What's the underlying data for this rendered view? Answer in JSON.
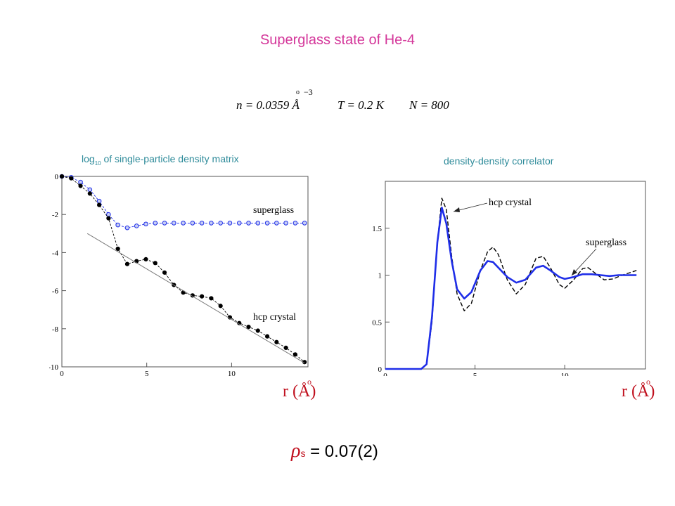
{
  "title": "Superglass  state of He-4",
  "params": {
    "n_text": "n = 0.0359 Å",
    "n_exp": "−3",
    "T_text": "T = 0.2 K",
    "N_text": "N = 800"
  },
  "rho_s": {
    "symbol": "ρ",
    "sub": "s",
    "value": "= 0.07(2)"
  },
  "colors": {
    "title": "#d4379a",
    "caption": "#2e8b9a",
    "superglass": "#1f2ee8",
    "crystal": "#000000",
    "axis_label": "#c0101e"
  },
  "chart_data": [
    {
      "type": "scatter",
      "caption_log": "log",
      "caption_sub": "10",
      "caption_rest": "of single-particle density matrix",
      "xlabel": "r (Å)",
      "xlim": [
        0,
        14.5
      ],
      "ylim": [
        -10,
        0
      ],
      "xticks": [
        0,
        5,
        10
      ],
      "yticks": [
        0,
        -2,
        -4,
        -6,
        -8,
        -10
      ],
      "series": [
        {
          "name": "superglass",
          "marker": "open-circle",
          "x": [
            0,
            0.55,
            1.1,
            1.65,
            2.2,
            2.75,
            3.3,
            3.85,
            4.4,
            4.95,
            5.5,
            6.05,
            6.6,
            7.15,
            7.7,
            8.25,
            8.8,
            9.35,
            9.9,
            10.45,
            11.0,
            11.55,
            12.1,
            12.65,
            13.2,
            13.75,
            14.3
          ],
          "y": [
            0,
            -0.05,
            -0.3,
            -0.7,
            -1.3,
            -2.0,
            -2.55,
            -2.7,
            -2.6,
            -2.5,
            -2.45,
            -2.45,
            -2.45,
            -2.45,
            -2.45,
            -2.45,
            -2.45,
            -2.45,
            -2.45,
            -2.45,
            -2.45,
            -2.45,
            -2.45,
            -2.45,
            -2.45,
            -2.45,
            -2.45
          ]
        },
        {
          "name": "hcp crystal",
          "marker": "filled-circle",
          "x": [
            0,
            0.55,
            1.1,
            1.65,
            2.2,
            2.75,
            3.3,
            3.85,
            4.4,
            4.95,
            5.5,
            6.05,
            6.6,
            7.15,
            7.7,
            8.25,
            8.8,
            9.35,
            9.9,
            10.45,
            11.0,
            11.55,
            12.1,
            12.65,
            13.2,
            13.75,
            14.3
          ],
          "y": [
            0,
            -0.1,
            -0.5,
            -0.9,
            -1.5,
            -2.2,
            -3.8,
            -4.6,
            -4.45,
            -4.35,
            -4.55,
            -5.05,
            -5.7,
            -6.1,
            -6.25,
            -6.3,
            -6.4,
            -6.8,
            -7.4,
            -7.7,
            -7.9,
            -8.1,
            -8.4,
            -8.7,
            -9.0,
            -9.35,
            -9.75
          ]
        },
        {
          "name": "hcp crystal",
          "marker": "line",
          "x": [
            1.5,
            14.3
          ],
          "y": [
            -3.0,
            -9.8
          ]
        }
      ]
    },
    {
      "type": "line",
      "caption": "density-density correlator",
      "xlabel": "r (Å)",
      "xlim": [
        0,
        14.5
      ],
      "ylim": [
        0,
        2.0
      ],
      "xticks": [
        0,
        5,
        10
      ],
      "yticks": [
        0,
        0.5,
        1,
        1.5
      ],
      "series": [
        {
          "name": "hcp crystal",
          "style": "dashed",
          "x": [
            0,
            2.0,
            2.3,
            2.6,
            2.9,
            3.15,
            3.4,
            3.7,
            4.0,
            4.4,
            4.8,
            5.3,
            5.7,
            6.0,
            6.3,
            6.8,
            7.3,
            7.8,
            8.4,
            8.8,
            9.2,
            9.7,
            10.0,
            10.5,
            11.0,
            11.3,
            11.7,
            12.2,
            12.7,
            13.2,
            13.7,
            14.0
          ],
          "y": [
            0,
            0,
            0.05,
            0.5,
            1.35,
            1.82,
            1.7,
            1.2,
            0.8,
            0.62,
            0.7,
            1.05,
            1.25,
            1.3,
            1.22,
            0.95,
            0.8,
            0.9,
            1.18,
            1.2,
            1.08,
            0.9,
            0.86,
            0.95,
            1.07,
            1.08,
            1.02,
            0.95,
            0.96,
            1.0,
            1.03,
            1.05
          ]
        },
        {
          "name": "superglass",
          "style": "solid",
          "x": [
            0,
            2.0,
            2.3,
            2.6,
            2.9,
            3.15,
            3.4,
            3.7,
            4.0,
            4.4,
            4.8,
            5.3,
            5.7,
            6.0,
            6.3,
            6.8,
            7.3,
            7.8,
            8.4,
            8.8,
            9.2,
            9.7,
            10.0,
            10.5,
            11.0,
            11.5,
            12.0,
            12.5,
            13.0,
            13.5,
            14.0
          ],
          "y": [
            0,
            0,
            0.05,
            0.55,
            1.35,
            1.72,
            1.55,
            1.15,
            0.85,
            0.75,
            0.82,
            1.05,
            1.15,
            1.14,
            1.08,
            0.98,
            0.92,
            0.95,
            1.08,
            1.1,
            1.05,
            0.98,
            0.96,
            0.98,
            1.01,
            1.01,
            1.0,
            0.99,
            1.0,
            1.0,
            1.0
          ]
        }
      ]
    }
  ]
}
